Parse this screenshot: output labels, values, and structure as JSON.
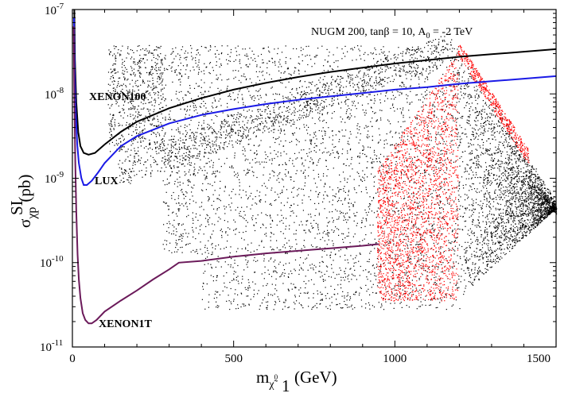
{
  "chart_data": {
    "type": "scatter",
    "title": "NUGM 200, tanβ = 10, A",
    "title_sub": "0",
    "title_end": " = -2 TeV",
    "xlabel": {
      "main": "m",
      "sub": "χ̃",
      "subsub_top": "0",
      "subsub_bottom": "1",
      "unit": "(GeV)"
    },
    "ylabel": {
      "main": "σ",
      "sup": "SI",
      "sub": "χp",
      "unit": "(pb)"
    },
    "xlim": [
      0,
      1500
    ],
    "ylim_log10": [
      -11,
      -7
    ],
    "yscale": "log",
    "x_ticks": [
      0,
      500,
      1000,
      1500
    ],
    "x_tick_labels": [
      "0",
      "500",
      "1000",
      "1500"
    ],
    "y_ticks": [
      {
        "base": "10",
        "exp": "-11"
      },
      {
        "base": "10",
        "exp": "-10"
      },
      {
        "base": "10",
        "exp": "-9"
      },
      {
        "base": "10",
        "exp": "-8"
      },
      {
        "base": "10",
        "exp": "-7"
      }
    ],
    "curves": [
      {
        "name": "XENON100",
        "color": "#000000",
        "points": [
          [
            6,
            -7.0
          ],
          [
            8,
            -7.6
          ],
          [
            12,
            -8.1
          ],
          [
            18,
            -8.45
          ],
          [
            25,
            -8.62
          ],
          [
            35,
            -8.7
          ],
          [
            50,
            -8.72
          ],
          [
            70,
            -8.7
          ],
          [
            100,
            -8.6
          ],
          [
            150,
            -8.45
          ],
          [
            200,
            -8.33
          ],
          [
            300,
            -8.17
          ],
          [
            400,
            -8.05
          ],
          [
            500,
            -7.95
          ],
          [
            600,
            -7.87
          ],
          [
            700,
            -7.8
          ],
          [
            800,
            -7.74
          ],
          [
            900,
            -7.69
          ],
          [
            1000,
            -7.64
          ],
          [
            1100,
            -7.6
          ],
          [
            1200,
            -7.56
          ],
          [
            1300,
            -7.53
          ],
          [
            1400,
            -7.5
          ],
          [
            1500,
            -7.47
          ]
        ]
      },
      {
        "name": "LUX",
        "color": "#1a1ae6",
        "points": [
          [
            5,
            -7.1
          ],
          [
            7,
            -7.7
          ],
          [
            10,
            -8.2
          ],
          [
            15,
            -8.6
          ],
          [
            20,
            -8.82
          ],
          [
            28,
            -9.0
          ],
          [
            35,
            -9.08
          ],
          [
            45,
            -9.08
          ],
          [
            60,
            -9.03
          ],
          [
            80,
            -8.93
          ],
          [
            100,
            -8.82
          ],
          [
            150,
            -8.62
          ],
          [
            200,
            -8.5
          ],
          [
            300,
            -8.35
          ],
          [
            400,
            -8.25
          ],
          [
            500,
            -8.18
          ],
          [
            600,
            -8.12
          ],
          [
            700,
            -8.07
          ],
          [
            800,
            -8.03
          ],
          [
            900,
            -7.99
          ],
          [
            1000,
            -7.95
          ],
          [
            1100,
            -7.92
          ],
          [
            1200,
            -7.88
          ],
          [
            1300,
            -7.85
          ],
          [
            1400,
            -7.82
          ],
          [
            1500,
            -7.79
          ]
        ]
      },
      {
        "name": "XENON1T",
        "color": "#6b1a5a",
        "points": [
          [
            4,
            -7.2
          ],
          [
            6,
            -8.0
          ],
          [
            9,
            -8.8
          ],
          [
            12,
            -9.4
          ],
          [
            16,
            -9.9
          ],
          [
            20,
            -10.2
          ],
          [
            25,
            -10.42
          ],
          [
            32,
            -10.6
          ],
          [
            40,
            -10.68
          ],
          [
            50,
            -10.72
          ],
          [
            60,
            -10.72
          ],
          [
            75,
            -10.68
          ],
          [
            100,
            -10.58
          ],
          [
            150,
            -10.45
          ],
          [
            200,
            -10.33
          ],
          [
            250,
            -10.2
          ],
          [
            300,
            -10.08
          ],
          [
            330,
            -10.0
          ],
          [
            400,
            -9.98
          ],
          [
            500,
            -9.93
          ],
          [
            600,
            -9.89
          ],
          [
            700,
            -9.86
          ],
          [
            800,
            -9.83
          ],
          [
            900,
            -9.8
          ],
          [
            950,
            -9.78
          ]
        ]
      }
    ],
    "curve_labels": [
      "XENON100",
      "LUX",
      "XENON1T"
    ],
    "series": [
      {
        "name": "scan points",
        "color": "#000000",
        "style": "dots"
      },
      {
        "name": "highlighted points",
        "color": "#ff0000",
        "style": "dots"
      }
    ]
  }
}
